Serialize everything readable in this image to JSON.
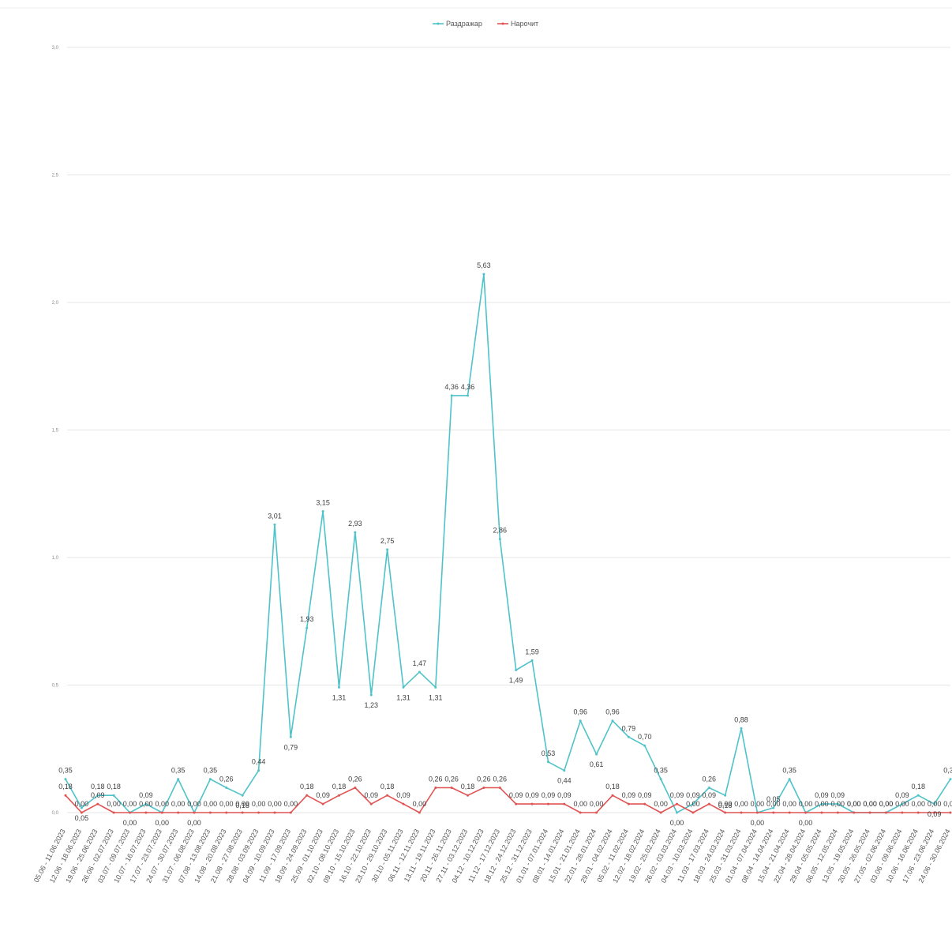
{
  "chart_data": {
    "type": "line",
    "title": "",
    "xlabel": "",
    "ylabel": "",
    "ylim": [
      0,
      8
    ],
    "y_ticks": [
      "0,0",
      "0,5",
      "1,0",
      "1,5",
      "2,0",
      "2,5",
      "3,0"
    ],
    "grid": true,
    "legend_position": "top-center",
    "categories": [
      "05.06 - 11.06.2023",
      "12.06 - 18.06.2023",
      "19.06 - 25.06.2023",
      "26.06 - 02.07.2023",
      "03.07 - 09.07.2023",
      "10.07 - 16.07.2023",
      "17.07 - 23.07.2023",
      "24.07 - 30.07.2023",
      "31.07 - 06.08.2023",
      "07.08 - 13.08.2023",
      "14.08 - 20.08.2023",
      "21.08 - 27.08.2023",
      "28.08 - 03.09.2023",
      "04.09 - 10.09.2023",
      "11.09 - 17.09.2023",
      "18.09 - 24.09.2023",
      "25.09 - 01.10.2023",
      "02.10 - 08.10.2023",
      "09.10 - 15.10.2023",
      "16.10 - 22.10.2023",
      "23.10 - 29.10.2023",
      "30.10 - 05.11.2023",
      "06.11 - 12.11.2023",
      "13.11 - 19.11.2023",
      "20.11 - 26.11.2023",
      "27.11 - 03.12.2023",
      "04.12 - 10.12.2023",
      "11.12 - 17.12.2023",
      "18.12 - 24.12.2023",
      "25.12 - 31.12.2023",
      "01.01 - 07.01.2024",
      "08.01 - 14.01.2024",
      "15.01 - 21.01.2024",
      "22.01 - 28.01.2024",
      "29.01 - 04.02.2024",
      "05.02 - 11.02.2024",
      "12.02 - 18.02.2024",
      "19.02 - 25.02.2024",
      "26.02 - 03.03.2024",
      "04.03 - 10.03.2024",
      "11.03 - 17.03.2024",
      "18.03 - 24.03.2024",
      "25.03 - 31.03.2024",
      "01.04 - 07.04.2024",
      "08.04 - 14.04.2024",
      "15.04 - 21.04.2024",
      "22.04 - 28.04.2024",
      "29.04 - 05.05.2024",
      "06.05 - 12.05.2024",
      "13.05 - 19.05.2024",
      "20.05 - 26.05.2024",
      "27.05 - 02.06.2024",
      "03.06 - 09.06.2024",
      "10.06 - 16.06.2024",
      "17.06 - 23.06.2024",
      "24.06 - 30.06.2024"
    ],
    "series": [
      {
        "name": "Раздражар",
        "color": "#4fc3c9",
        "values": [
          0.35,
          0.05,
          0.18,
          0.18,
          0.0,
          0.09,
          0.0,
          0.35,
          0.0,
          0.35,
          0.26,
          0.18,
          0.44,
          3.01,
          0.79,
          1.93,
          3.15,
          1.31,
          2.93,
          1.23,
          2.75,
          1.31,
          1.47,
          1.31,
          4.36,
          4.36,
          5.63,
          2.86,
          1.49,
          1.59,
          0.53,
          0.44,
          0.96,
          0.61,
          0.96,
          0.79,
          0.7,
          0.35,
          0.0,
          0.09,
          0.26,
          0.18,
          0.88,
          0.0,
          0.05,
          0.35,
          0.0,
          0.09,
          0.09,
          0.0,
          0.0,
          0.0,
          0.09,
          0.18,
          0.09,
          0.35
        ],
        "labels": [
          "0,35",
          "0,05",
          "0,18",
          "0,18",
          "0,00",
          "0,09",
          "0,00",
          "0,35",
          "0,00",
          "0,35",
          "0,26",
          "0,18",
          "0,44",
          "3,01",
          "0,79",
          "1,93",
          "3,15",
          "1,31",
          "2,93",
          "1,23",
          "2,75",
          "1,31",
          "1,47",
          "1,31",
          "4,36",
          "4,36",
          "5,63",
          "2,86",
          "1,49",
          "1,59",
          "0,53",
          "0,44",
          "0,96",
          "0,61",
          "0,96",
          "0,79",
          "0,70",
          "0,35",
          "0,00",
          "0,09",
          "0,26",
          "0,18",
          "0,88",
          "0,00",
          "0,05",
          "0,35",
          "0,00",
          "0,09",
          "0,09",
          "0,00",
          "0,00",
          "0,00",
          "0,09",
          "0,18",
          "0,09",
          "0,35"
        ]
      },
      {
        "name": "Нарочит",
        "color": "#e05353",
        "values": [
          0.18,
          0.0,
          0.09,
          0.0,
          0.0,
          0.0,
          0.0,
          0.0,
          0.0,
          0.0,
          0.0,
          0.0,
          0.0,
          0.0,
          0.0,
          0.18,
          0.09,
          0.18,
          0.26,
          0.09,
          0.18,
          0.09,
          0.0,
          0.26,
          0.26,
          0.18,
          0.26,
          0.26,
          0.09,
          0.09,
          0.09,
          0.09,
          0.0,
          0.0,
          0.18,
          0.09,
          0.09,
          0.0,
          0.09,
          0.0,
          0.09,
          0.0,
          0.0,
          0.0,
          0.0,
          0.0,
          0.0,
          0.0,
          0.0,
          0.0,
          0.0,
          0.0,
          0.0,
          0.0,
          0.0,
          0.0
        ],
        "labels": [
          "0,18",
          "0,00",
          "0,09",
          "0,00",
          "0,00",
          "0,00",
          "0,00",
          "0,00",
          "0,00",
          "0,00",
          "0,00",
          "0,00",
          "0,00",
          "0,00",
          "0,00",
          "0,18",
          "0,09",
          "0,18",
          "0,26",
          "0,09",
          "0,18",
          "0,09",
          "0,00",
          "0,26",
          "0,26",
          "0,18",
          "0,26",
          "0,26",
          "0,09",
          "0,09",
          "0,09",
          "0,09",
          "0,00",
          "0,00",
          "0,18",
          "0,09",
          "0,09",
          "0,00",
          "0,09",
          "0,00",
          "0,09",
          "0,00",
          "0,00",
          "0,00",
          "0,00",
          "0,00",
          "0,00",
          "0,00",
          "0,00",
          "0,00",
          "0,00",
          "0,00",
          "0,00",
          "0,00",
          "0,00",
          "0,00"
        ]
      }
    ]
  }
}
